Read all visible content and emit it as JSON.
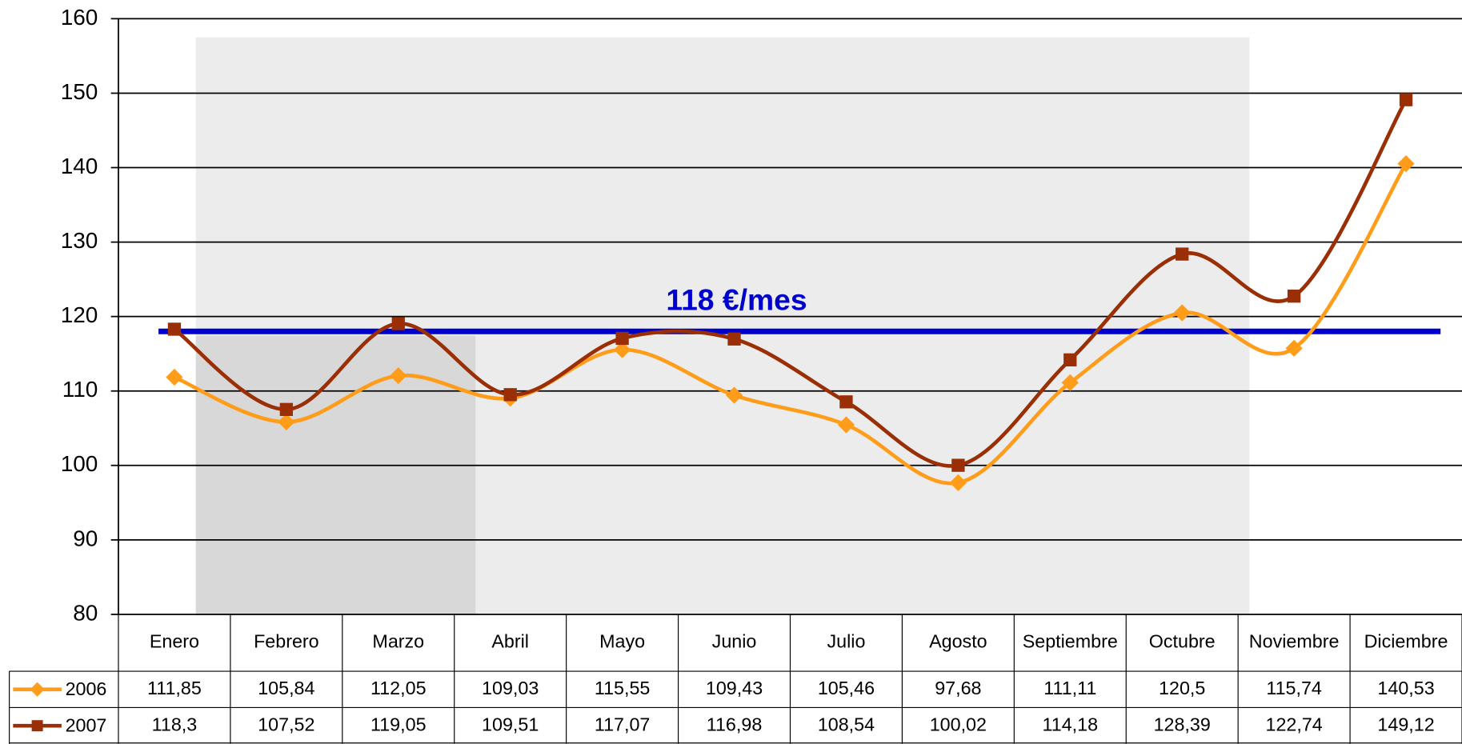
{
  "chart_data": {
    "type": "line",
    "categories": [
      "Enero",
      "Febrero",
      "Marzo",
      "Abril",
      "Mayo",
      "Junio",
      "Julio",
      "Agosto",
      "Septiembre",
      "Octubre",
      "Noviembre",
      "Diciembre"
    ],
    "series": [
      {
        "name": "2006",
        "color": "#ff9c1a",
        "marker": "diamond",
        "values": [
          111.85,
          105.84,
          112.05,
          109.03,
          115.55,
          109.43,
          105.46,
          97.68,
          111.11,
          120.5,
          115.74,
          140.53
        ],
        "value_labels": [
          "111,85",
          "105,84",
          "112,05",
          "109,03",
          "115,55",
          "109,43",
          "105,46",
          "97,68",
          "111,11",
          "120,5",
          "115,74",
          "140,53"
        ]
      },
      {
        "name": "2007",
        "color": "#9a2f06",
        "marker": "square",
        "values": [
          118.3,
          107.52,
          119.05,
          109.51,
          117.07,
          116.98,
          108.54,
          100.02,
          114.18,
          128.39,
          122.74,
          149.12
        ],
        "value_labels": [
          "118,3",
          "107,52",
          "119,05",
          "109,51",
          "117,07",
          "116,98",
          "108,54",
          "100,02",
          "114,18",
          "128,39",
          "122,74",
          "149,12"
        ]
      }
    ],
    "ylim": [
      80,
      160
    ],
    "yticks": [
      80,
      90,
      100,
      110,
      120,
      130,
      140,
      150,
      160
    ],
    "grid": true,
    "reference_line": {
      "value": 118,
      "label": "118 €/mes",
      "color": "#0000cc"
    }
  }
}
